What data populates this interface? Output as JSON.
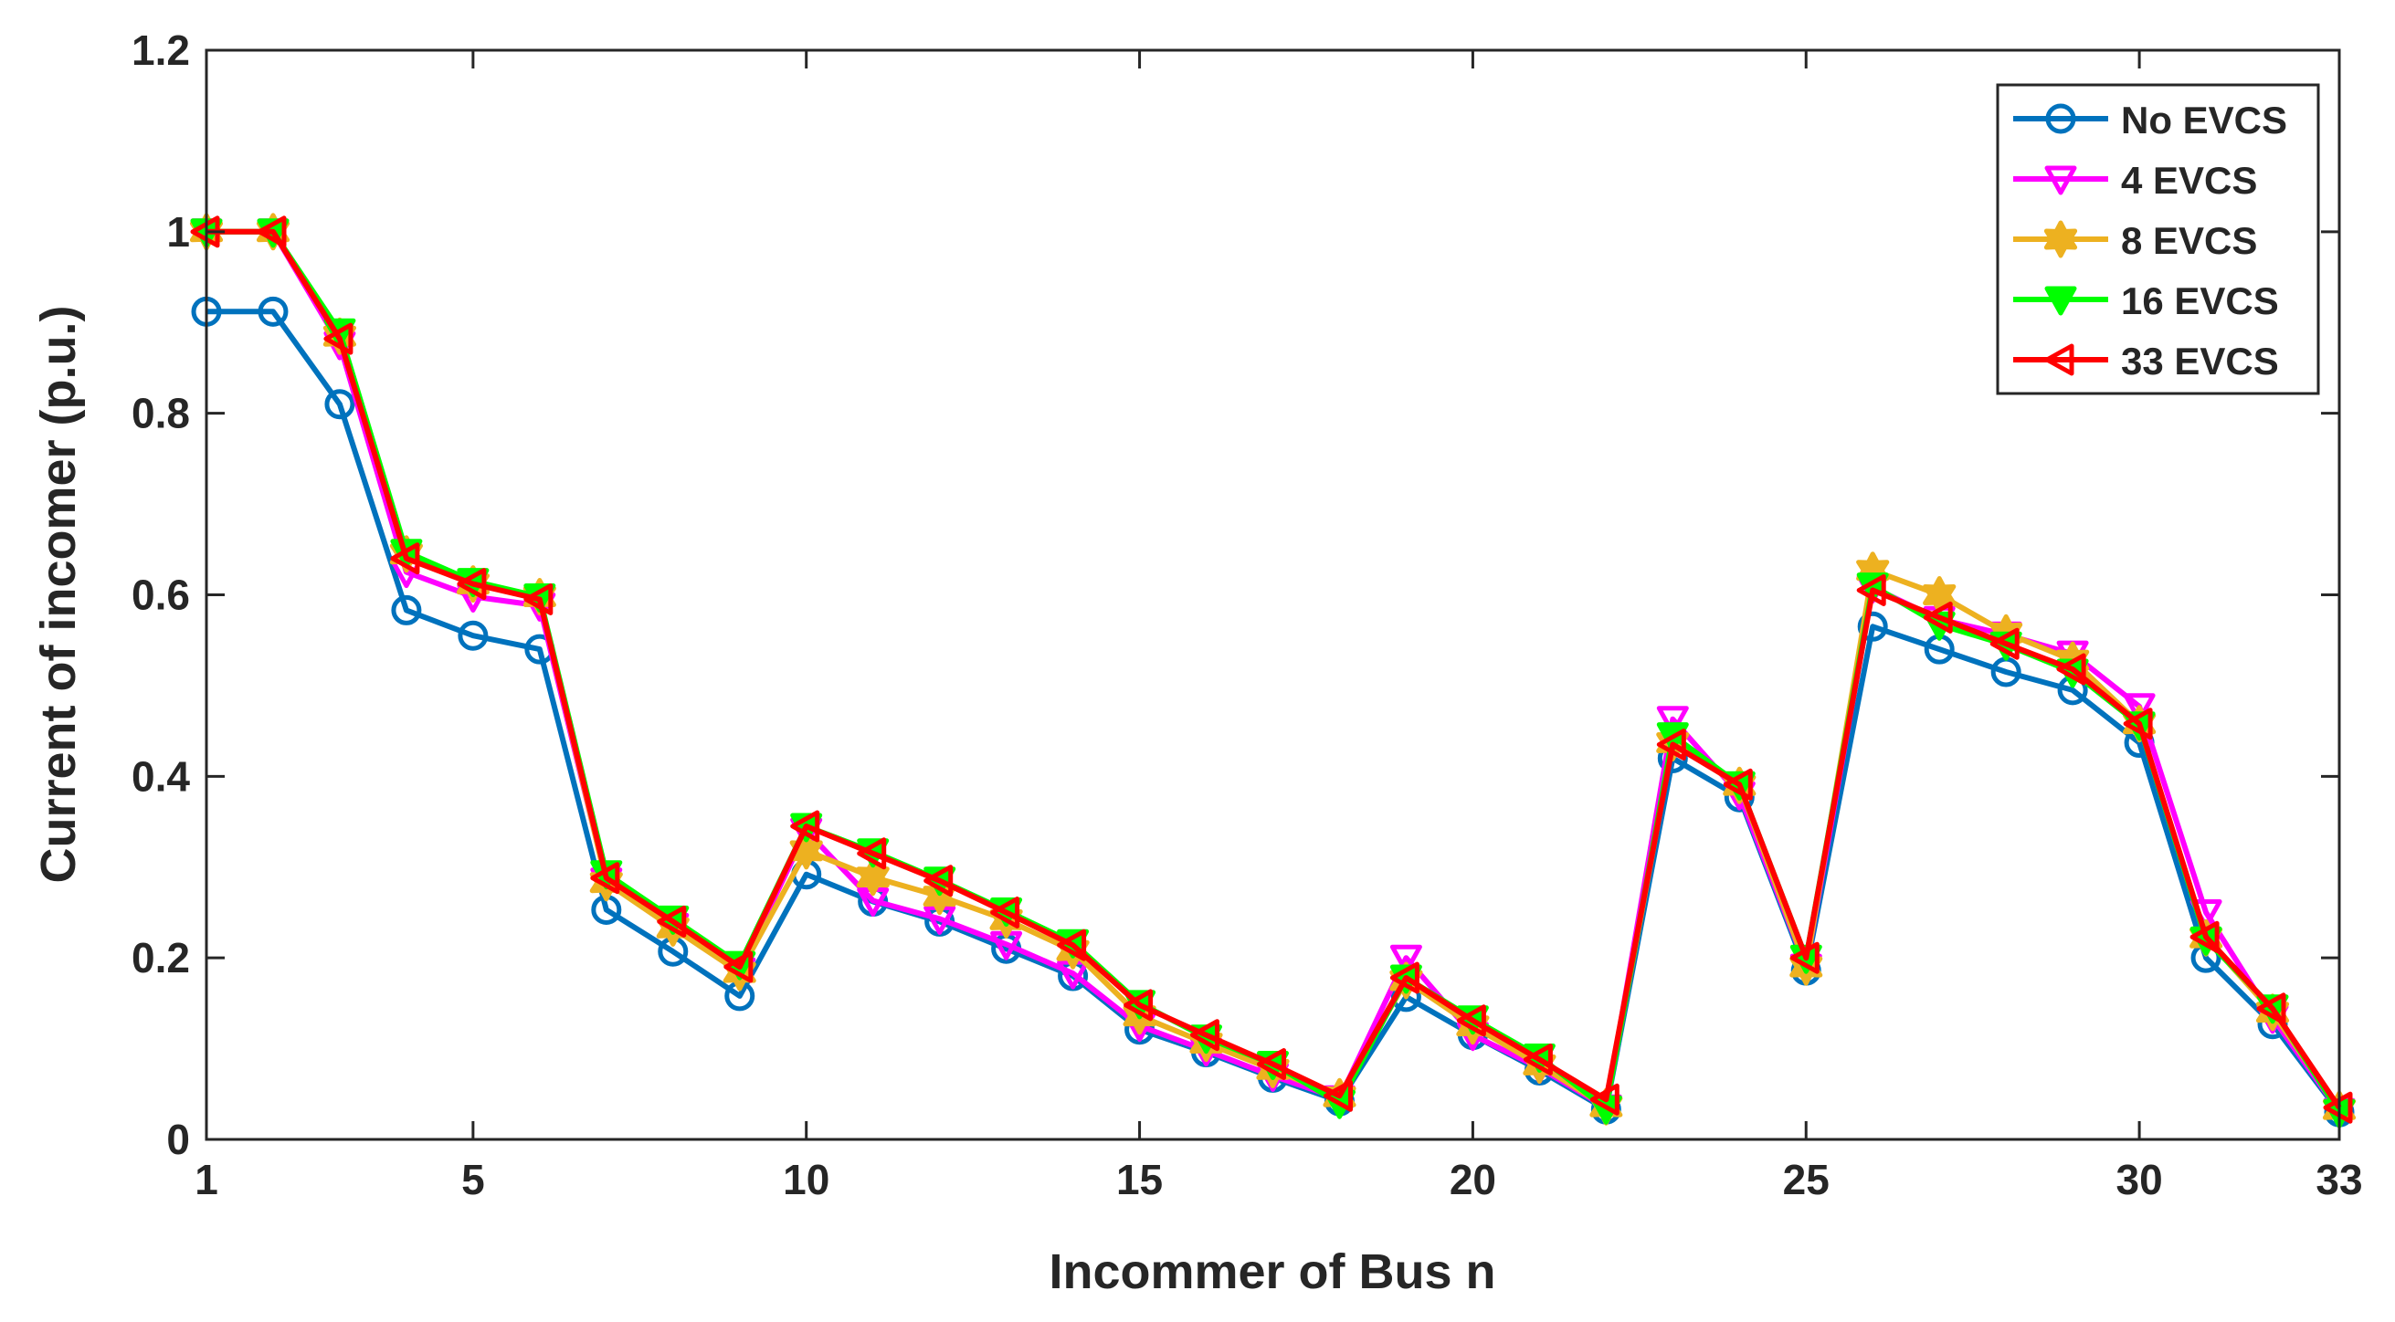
{
  "chart_data": {
    "type": "line",
    "xlabel": "Incommer of Bus n",
    "ylabel": "Current of incomer (p.u.)",
    "xlim": [
      1,
      33
    ],
    "ylim": [
      0,
      1.2
    ],
    "xticks": [
      1,
      5,
      10,
      15,
      20,
      25,
      30,
      33
    ],
    "yticks": [
      0,
      0.2,
      0.4,
      0.6,
      0.8,
      1,
      1.2
    ],
    "ytick_labels": [
      "0",
      "0.2",
      "0.4",
      "0.6",
      "0.8",
      "1",
      "1.2"
    ],
    "grid": false,
    "legend_position": "top-right",
    "x": [
      1,
      2,
      3,
      4,
      5,
      6,
      7,
      8,
      9,
      10,
      11,
      12,
      13,
      14,
      15,
      16,
      17,
      18,
      19,
      20,
      21,
      22,
      23,
      24,
      25,
      26,
      27,
      28,
      29,
      30,
      31,
      32,
      33
    ],
    "series": [
      {
        "name": "No EVCS",
        "color": "#0072bd",
        "marker": "circle",
        "values": [
          0.912,
          0.912,
          0.81,
          0.583,
          0.555,
          0.54,
          0.253,
          0.207,
          0.158,
          0.292,
          0.262,
          0.24,
          0.21,
          0.18,
          0.121,
          0.096,
          0.068,
          0.042,
          0.157,
          0.115,
          0.076,
          0.033,
          0.42,
          0.377,
          0.186,
          0.565,
          0.54,
          0.515,
          0.495,
          0.437,
          0.2,
          0.127,
          0.03
        ]
      },
      {
        "name": "4 EVCS",
        "color": "#ff00ff",
        "marker": "triangle-down",
        "values": [
          1.0,
          1.0,
          0.876,
          0.625,
          0.598,
          0.588,
          0.285,
          0.235,
          0.186,
          0.34,
          0.263,
          0.243,
          0.215,
          0.183,
          0.125,
          0.098,
          0.07,
          0.045,
          0.2,
          0.115,
          0.079,
          0.035,
          0.463,
          0.38,
          0.19,
          0.608,
          0.573,
          0.556,
          0.535,
          0.477,
          0.25,
          0.134,
          0.031
        ]
      },
      {
        "name": "8 EVCS",
        "color": "#edb120",
        "marker": "hexagram",
        "values": [
          1.0,
          1.0,
          0.885,
          0.645,
          0.612,
          0.598,
          0.283,
          0.233,
          0.184,
          0.318,
          0.289,
          0.268,
          0.242,
          0.208,
          0.136,
          0.106,
          0.077,
          0.047,
          0.175,
          0.125,
          0.082,
          0.036,
          0.437,
          0.39,
          0.19,
          0.627,
          0.6,
          0.558,
          0.528,
          0.458,
          0.222,
          0.14,
          0.033
        ]
      },
      {
        "name": "16 EVCS",
        "color": "#00ff00",
        "marker": "triangle-down-filled",
        "values": [
          1.0,
          1.0,
          0.89,
          0.647,
          0.615,
          0.598,
          0.293,
          0.243,
          0.193,
          0.345,
          0.317,
          0.286,
          0.252,
          0.217,
          0.15,
          0.112,
          0.083,
          0.04,
          0.178,
          0.133,
          0.091,
          0.034,
          0.445,
          0.391,
          0.2,
          0.61,
          0.567,
          0.545,
          0.515,
          0.457,
          0.22,
          0.145,
          0.03
        ]
      },
      {
        "name": "33 EVCS",
        "color": "#ff0000",
        "marker": "triangle-left",
        "values": [
          1.0,
          1.0,
          0.882,
          0.64,
          0.612,
          0.595,
          0.288,
          0.24,
          0.19,
          0.345,
          0.315,
          0.285,
          0.25,
          0.214,
          0.148,
          0.115,
          0.083,
          0.048,
          0.178,
          0.131,
          0.088,
          0.044,
          0.435,
          0.391,
          0.2,
          0.605,
          0.575,
          0.546,
          0.518,
          0.458,
          0.223,
          0.144,
          0.035
        ]
      }
    ]
  }
}
